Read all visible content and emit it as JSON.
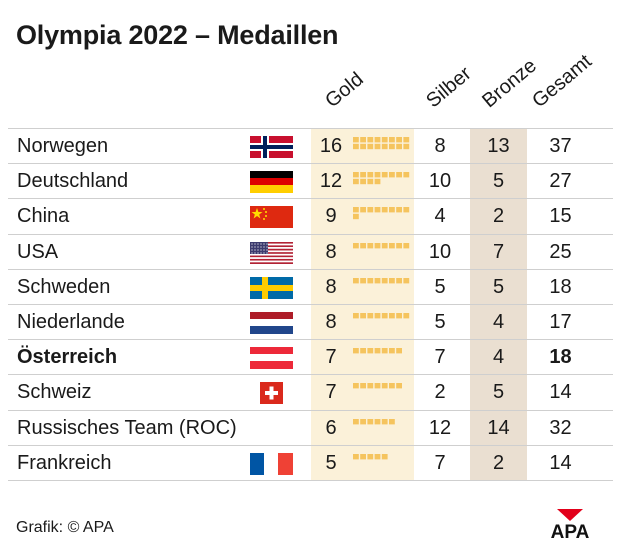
{
  "title": "Olympia 2022 – Medaillen",
  "source": "Grafik: © APA",
  "logo_text": "APA",
  "colors": {
    "gold_column": "#fbf1d9",
    "bronze_column": "#eadfd1",
    "gold_block": "#f5c45e",
    "apa_red": "#e2001a"
  },
  "chart_data": {
    "type": "table",
    "title": "Olympia 2022 – Medaillen",
    "columns": [
      "Gold",
      "Silber",
      "Bronze",
      "Gesamt"
    ],
    "rows": [
      {
        "country": "Norwegen",
        "flag": "flag-norway",
        "gold": 16,
        "silver": 8,
        "bronze": 13,
        "total": 37
      },
      {
        "country": "Deutschland",
        "flag": "flag-germany",
        "gold": 12,
        "silver": 10,
        "bronze": 5,
        "total": 27
      },
      {
        "country": "China",
        "flag": "flag-china",
        "gold": 9,
        "silver": 4,
        "bronze": 2,
        "total": 15
      },
      {
        "country": "USA",
        "flag": "flag-usa",
        "gold": 8,
        "silver": 10,
        "bronze": 7,
        "total": 25
      },
      {
        "country": "Schweden",
        "flag": "flag-sweden",
        "gold": 8,
        "silver": 5,
        "bronze": 5,
        "total": 18
      },
      {
        "country": "Niederlande",
        "flag": "flag-netherlands",
        "gold": 8,
        "silver": 5,
        "bronze": 4,
        "total": 17
      },
      {
        "country": "Österreich",
        "flag": "flag-austria",
        "gold": 7,
        "silver": 7,
        "bronze": 4,
        "total": 18,
        "highlight": true
      },
      {
        "country": "Schweiz",
        "flag": "flag-switzerland",
        "gold": 7,
        "silver": 2,
        "bronze": 5,
        "total": 14
      },
      {
        "country": "Russisches Team (ROC)",
        "flag": "",
        "gold": 6,
        "silver": 12,
        "bronze": 14,
        "total": 32
      },
      {
        "country": "Frankreich",
        "flag": "flag-france",
        "gold": 5,
        "silver": 7,
        "bronze": 2,
        "total": 14
      }
    ]
  }
}
